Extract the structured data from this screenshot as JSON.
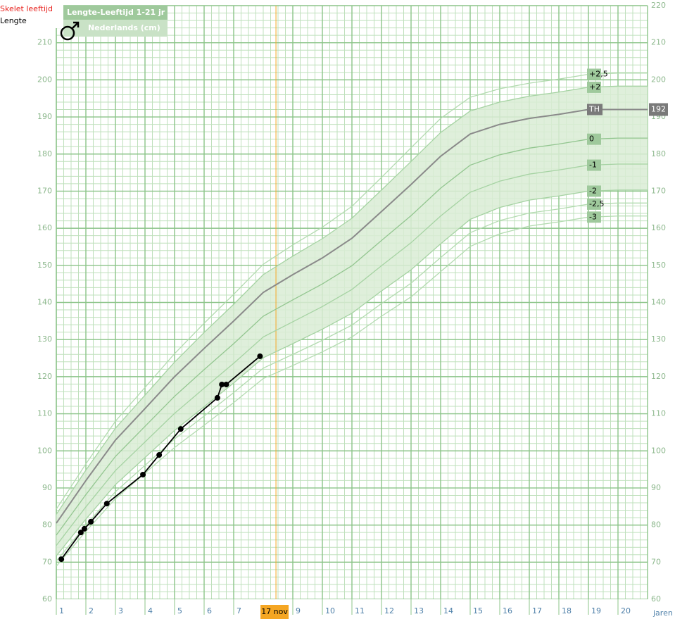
{
  "chart_data": {
    "type": "line",
    "title": "Lengte-Leeftijd 1-21 jr",
    "subtitle": "Nederlands  (cm)",
    "legend": [
      {
        "name": "Skelet leeftijd",
        "color": "#e8231f"
      },
      {
        "name": "Lengte",
        "color": "#000000"
      }
    ],
    "xlabel": "jaren",
    "xlim": [
      1,
      21
    ],
    "ylim": [
      60,
      220
    ],
    "xticks": [
      1,
      2,
      3,
      4,
      5,
      6,
      7,
      9,
      10,
      11,
      12,
      13,
      14,
      15,
      16,
      17,
      18,
      19,
      20
    ],
    "yticks": [
      60,
      70,
      80,
      90,
      100,
      110,
      120,
      130,
      140,
      150,
      160,
      170,
      180,
      190,
      200,
      210,
      220
    ],
    "grid": true,
    "band_color": "#d9ecd5",
    "marker": {
      "label": "17 nov",
      "x": 8.43,
      "color": "#f5a623"
    },
    "x": [
      1,
      2,
      3,
      4,
      5,
      6,
      7,
      8,
      9,
      10,
      11,
      12,
      13,
      14,
      15,
      16,
      17,
      18,
      19,
      20,
      21
    ],
    "series": [
      {
        "name": "+2,5",
        "color": "#b3dbb0",
        "values": [
          84.3,
          96.5,
          108.0,
          117.1,
          126.2,
          134.4,
          142.2,
          150.3,
          155.5,
          160.3,
          165.9,
          173.7,
          181.7,
          189.6,
          195.3,
          197.6,
          199.1,
          200.2,
          201.5,
          201.8,
          201.8
        ]
      },
      {
        "name": "+2",
        "color": "#a6d3a3",
        "values": [
          82.9,
          94.8,
          106.1,
          115.0,
          123.9,
          131.9,
          139.5,
          147.5,
          152.5,
          157.2,
          162.7,
          170.3,
          178.0,
          185.8,
          191.6,
          194.0,
          195.6,
          196.7,
          198.0,
          198.3,
          198.3
        ]
      },
      {
        "name": "0",
        "color": "#93c690",
        "values": [
          77.3,
          88.2,
          98.5,
          106.6,
          114.7,
          121.9,
          128.9,
          136.3,
          140.7,
          145.0,
          149.9,
          156.7,
          163.4,
          170.8,
          177.0,
          179.8,
          181.6,
          182.7,
          184.0,
          184.3,
          184.3
        ]
      },
      {
        "name": "-1",
        "color": "#a6d3a3",
        "values": [
          74.5,
          84.9,
          94.7,
          102.4,
          110.1,
          116.9,
          123.6,
          130.7,
          134.8,
          138.9,
          143.5,
          149.9,
          156.1,
          163.3,
          169.7,
          172.7,
          174.6,
          175.7,
          177.0,
          177.3,
          177.3
        ]
      },
      {
        "name": "-2",
        "color": "#a6d3a3",
        "values": [
          71.7,
          81.6,
          90.9,
          98.2,
          105.5,
          111.9,
          118.3,
          125.1,
          128.9,
          132.8,
          137.1,
          143.1,
          148.8,
          155.8,
          162.4,
          165.6,
          167.6,
          168.7,
          170.0,
          170.3,
          170.3
        ]
      },
      {
        "name": "-2,5",
        "color": "#b3dbb0",
        "values": [
          70.3,
          80.0,
          89.0,
          96.1,
          103.2,
          109.4,
          115.7,
          122.3,
          126.0,
          129.8,
          133.9,
          139.7,
          145.2,
          152.1,
          158.8,
          162.1,
          164.1,
          165.2,
          166.5,
          166.8,
          166.8
        ]
      },
      {
        "name": "-3",
        "color": "#b3dbb0",
        "values": [
          68.9,
          78.3,
          87.1,
          94.0,
          100.9,
          106.9,
          113.0,
          119.5,
          123.0,
          126.7,
          130.7,
          136.3,
          141.5,
          148.3,
          155.1,
          158.5,
          160.6,
          161.7,
          163.0,
          163.3,
          163.3
        ]
      },
      {
        "name": "TH",
        "color": "#8a8a8a",
        "end_label": "192",
        "values": [
          80.5,
          92.0,
          102.9,
          111.4,
          120.0,
          127.6,
          135.0,
          142.7,
          147.5,
          152.0,
          157.3,
          164.5,
          171.8,
          179.4,
          185.4,
          188.0,
          189.6,
          190.7,
          192.0,
          192.0,
          192.0
        ]
      }
    ],
    "measurements": {
      "color": "#000000",
      "x": [
        1.17,
        1.83,
        1.95,
        2.17,
        2.71,
        3.93,
        4.48,
        5.21,
        6.45,
        6.6,
        6.75,
        7.89
      ],
      "values": [
        70.8,
        78.0,
        79.0,
        80.9,
        85.8,
        93.6,
        98.9,
        105.9,
        114.3,
        117.9,
        117.9,
        125.5
      ]
    }
  }
}
